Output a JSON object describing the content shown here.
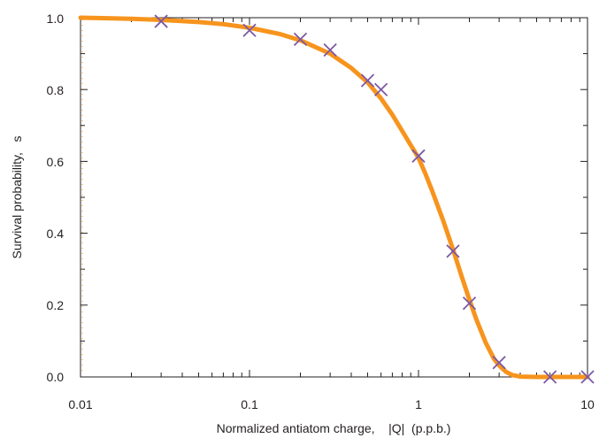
{
  "chart_data": {
    "type": "scatter",
    "xlabel": "Normalized antiatom charge,    |Q|  (p.p.b.)",
    "ylabel": "Survival probability,   s",
    "xscale": "log",
    "xlim": [
      0.01,
      10
    ],
    "ylim": [
      0,
      1
    ],
    "grid": false,
    "x_tick_labels": [
      "0.01",
      "0.1",
      "1",
      "10"
    ],
    "y_tick_labels": [
      "0.0",
      "0.2",
      "0.4",
      "0.6",
      "0.8",
      "1.0"
    ],
    "series": [
      {
        "kind": "markers",
        "marker": "x",
        "color": "#7b58a6",
        "x": [
          0.03,
          0.1,
          0.2,
          0.3,
          0.5,
          0.6,
          1.0,
          1.6,
          2.0,
          3.0,
          6.0,
          10.0
        ],
        "y": [
          0.99,
          0.965,
          0.94,
          0.91,
          0.825,
          0.8,
          0.615,
          0.35,
          0.205,
          0.04,
          0.0,
          0.0
        ]
      },
      {
        "kind": "curve",
        "color": "#f7941d",
        "x": [
          0.01,
          0.02,
          0.03,
          0.05,
          0.07,
          0.1,
          0.15,
          0.2,
          0.3,
          0.4,
          0.5,
          0.6,
          0.7,
          0.8,
          0.9,
          1.0,
          1.1,
          1.2,
          1.4,
          1.6,
          1.8,
          2.0,
          2.2,
          2.5,
          2.8,
          3.0,
          3.3,
          3.6,
          4.0,
          5.0,
          6.0,
          8.0,
          10.0
        ],
        "y": [
          1.0,
          0.997,
          0.994,
          0.988,
          0.982,
          0.972,
          0.955,
          0.937,
          0.9,
          0.86,
          0.82,
          0.775,
          0.73,
          0.685,
          0.645,
          0.61,
          0.565,
          0.52,
          0.435,
          0.355,
          0.28,
          0.215,
          0.16,
          0.095,
          0.05,
          0.032,
          0.014,
          0.005,
          0.001,
          0.0,
          0.0,
          0.0,
          0.0
        ]
      }
    ]
  }
}
